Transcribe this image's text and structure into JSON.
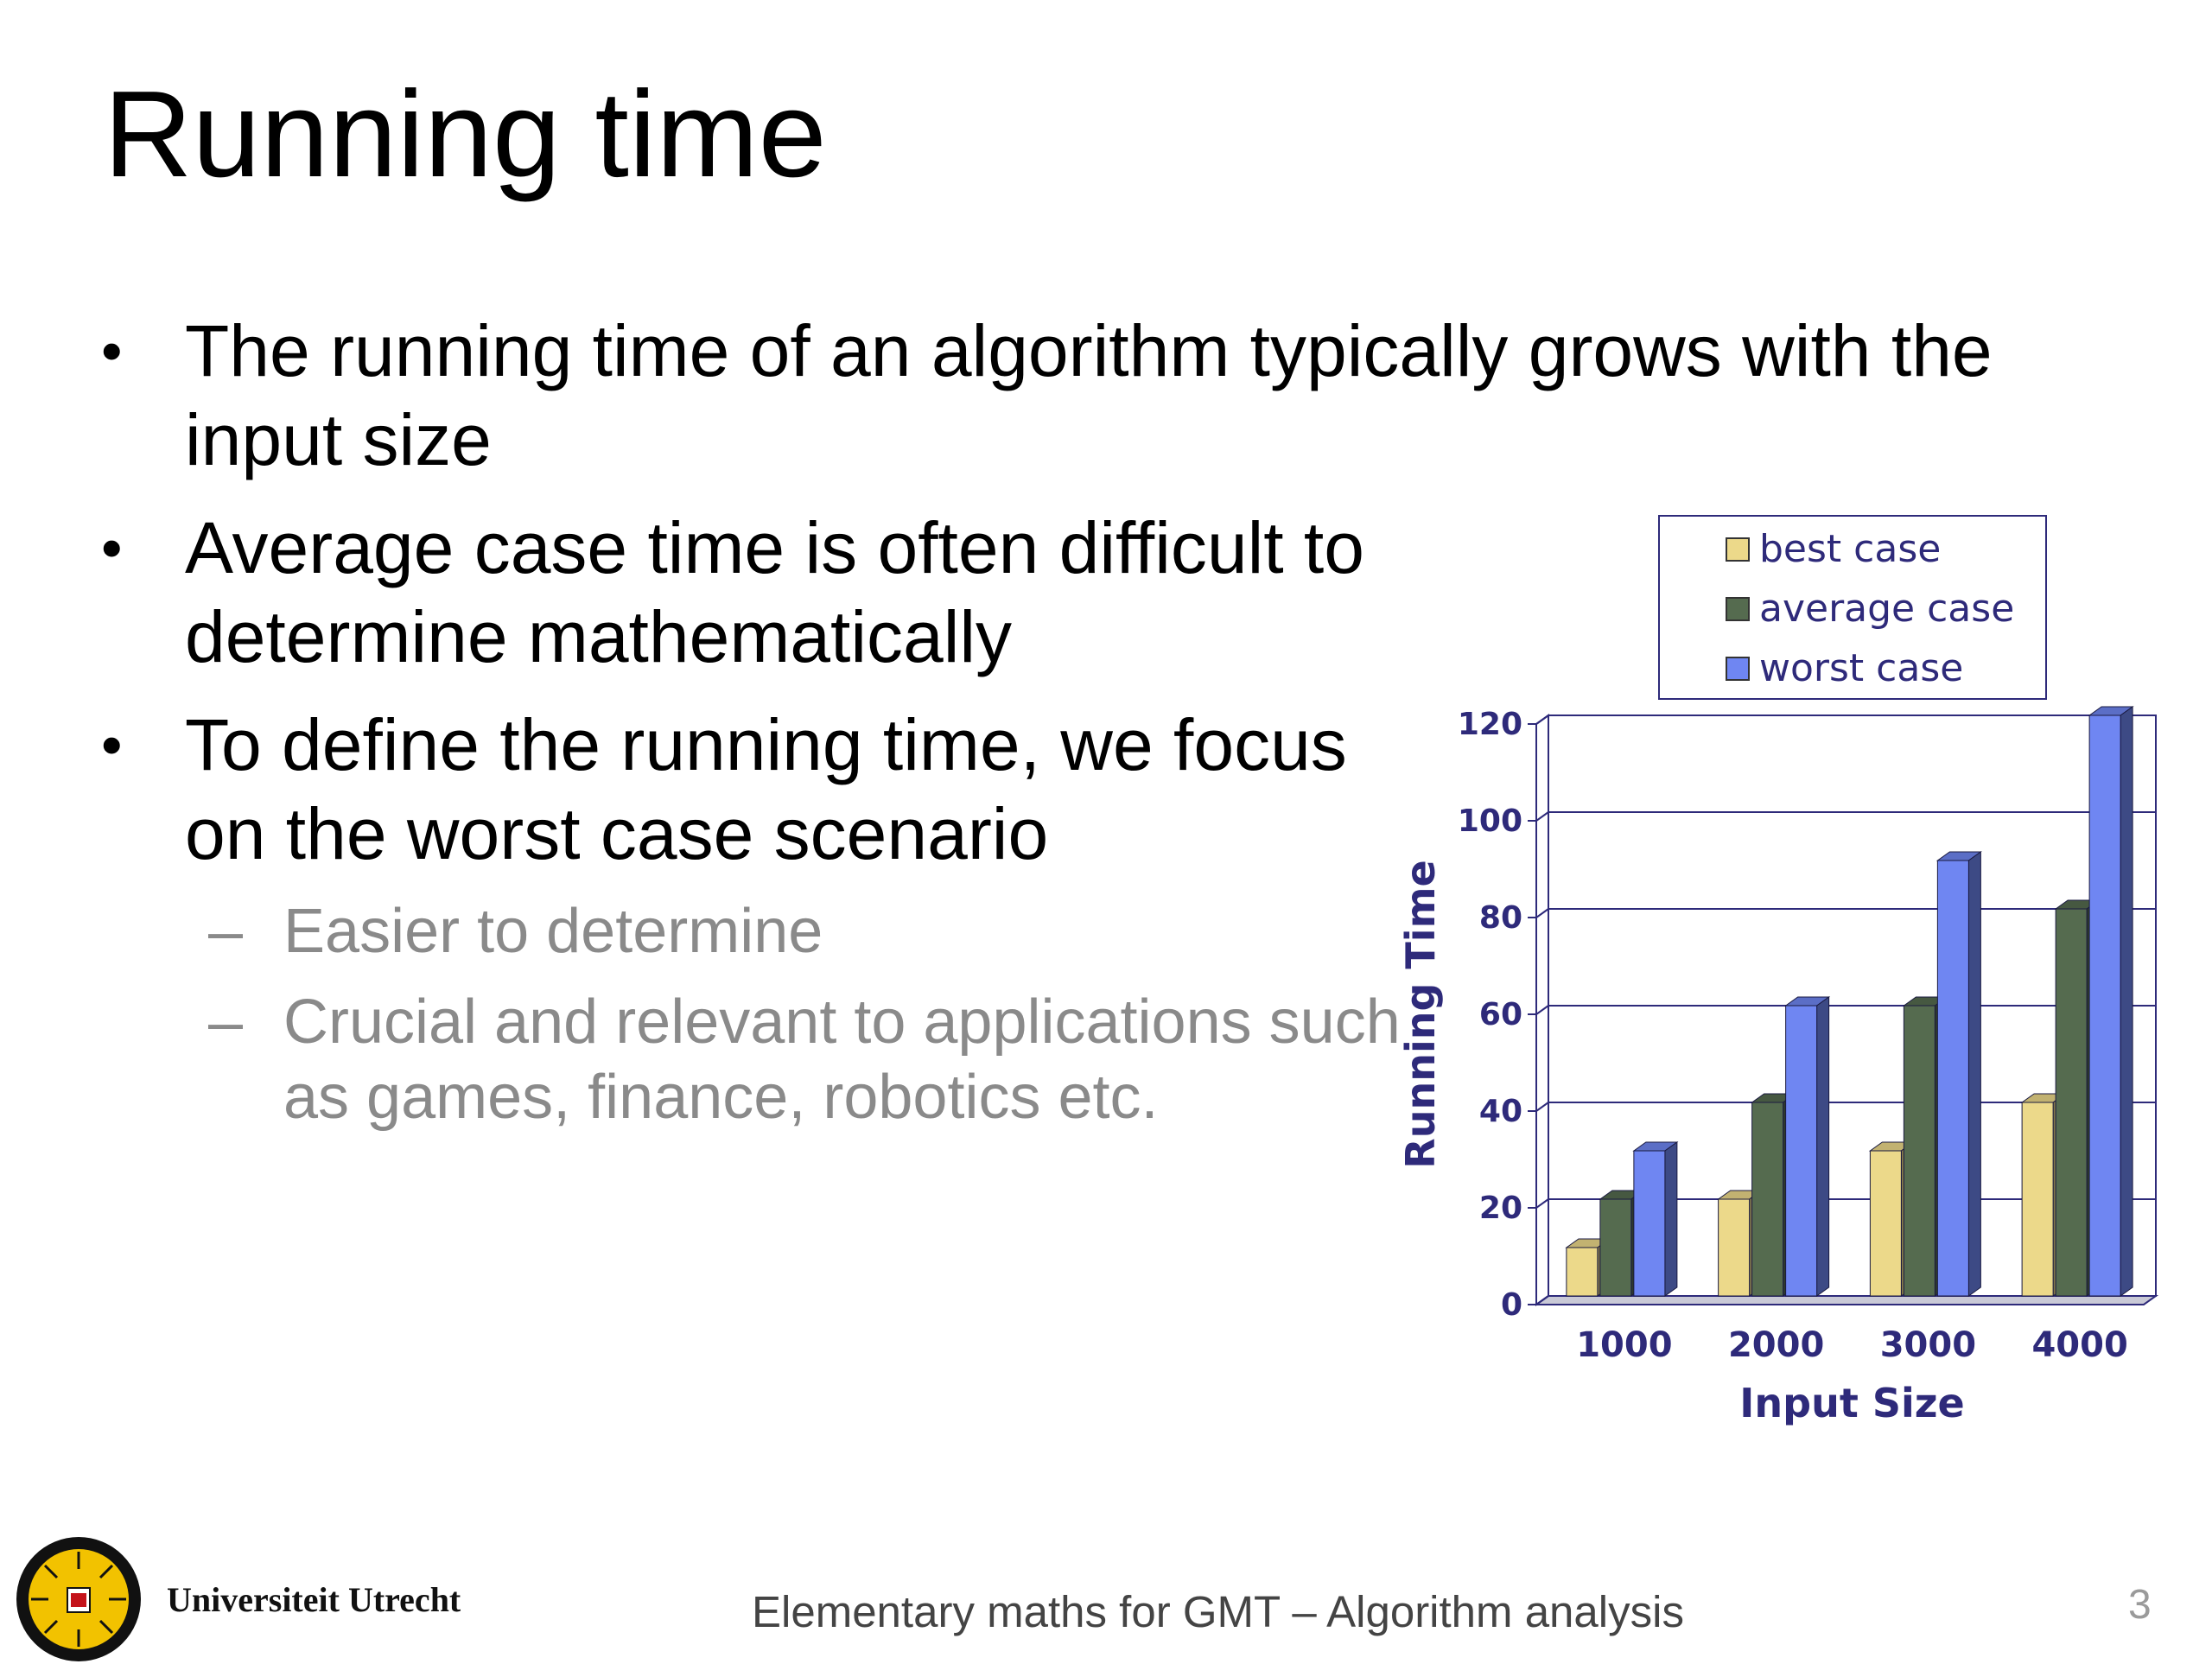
{
  "slide": {
    "title": "Running time",
    "bullets": [
      "The running time of an algorithm typically grows with the input size",
      "Average case time is often difficult to determine mathematically",
      "To define the running time, we focus on the worst case scenario"
    ],
    "sub_bullets": [
      "Easier to determine",
      "Crucial and relevant to applications such as games, finance, robotics etc."
    ],
    "bullet_char": "•",
    "dash_char": "–"
  },
  "footer": {
    "institution": "Universiteit Utrecht",
    "course": "Elementary maths for GMT – Algorithm analysis",
    "page": "3"
  },
  "colors": {
    "best_case": "#ecd98a",
    "average_case": "#556b4f",
    "worst_case": "#6f86f2",
    "axis_text": "#2e2a7a",
    "grid": "#2e2a7a"
  },
  "chart_data": {
    "type": "bar",
    "categories": [
      "1000",
      "2000",
      "3000",
      "4000"
    ],
    "series": [
      {
        "name": "best case",
        "values": [
          10,
          20,
          30,
          40
        ]
      },
      {
        "name": "average case",
        "values": [
          20,
          40,
          60,
          80
        ]
      },
      {
        "name": "worst case",
        "values": [
          30,
          60,
          90,
          120
        ]
      }
    ],
    "xlabel": "Input Size",
    "ylabel": "Running Time",
    "ylim": [
      0,
      120
    ],
    "yticks": [
      0,
      20,
      40,
      60,
      80,
      100,
      120
    ],
    "grid": true,
    "legend": "top",
    "style": "3d-clustered"
  }
}
